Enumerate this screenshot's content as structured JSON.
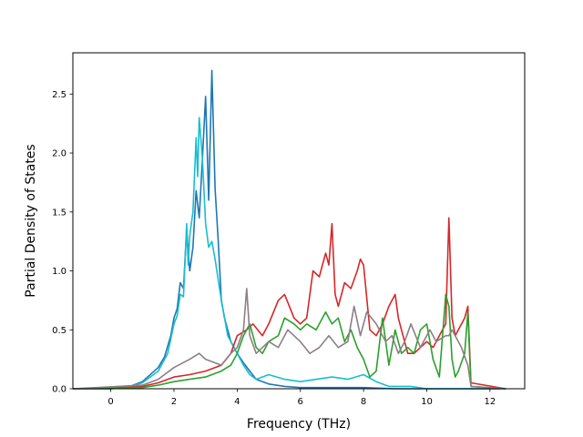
{
  "chart_data": {
    "type": "line",
    "title": "",
    "xlabel": "Frequency (THz)",
    "ylabel": "Partial Density of States",
    "xlim": [
      -1.2,
      13.1
    ],
    "ylim": [
      0,
      2.85
    ],
    "xticks": [
      0,
      2,
      4,
      6,
      8,
      10,
      12
    ],
    "xtick_labels": [
      "0",
      "2",
      "4",
      "6",
      "8",
      "10",
      "12"
    ],
    "yticks": [
      0.0,
      0.5,
      1.0,
      1.5,
      2.0,
      2.5
    ],
    "ytick_labels": [
      "0.0",
      "0.5",
      "1.0",
      "1.5",
      "2.0",
      "2.5"
    ],
    "grid": false,
    "legend": "none",
    "series": [
      {
        "color": "#1f77b4",
        "x": [
          -1.2,
          0.0,
          0.5,
          1.0,
          1.5,
          1.7,
          1.9,
          2.0,
          2.1,
          2.2,
          2.3,
          2.4,
          2.5,
          2.6,
          2.7,
          2.8,
          2.9,
          3.0,
          3.1,
          3.2,
          3.3,
          3.4,
          3.5,
          3.6,
          3.8,
          4.0,
          4.2,
          4.4,
          4.6,
          5.0,
          5.5,
          6.0,
          7.0,
          8.0,
          9.0,
          10.0,
          11.0,
          11.3,
          12.5
        ],
        "y": [
          0,
          0,
          0.01,
          0.06,
          0.18,
          0.27,
          0.45,
          0.6,
          0.68,
          0.9,
          0.85,
          1.35,
          1.0,
          1.2,
          1.68,
          1.45,
          1.95,
          2.48,
          1.6,
          2.7,
          1.7,
          1.25,
          0.75,
          0.6,
          0.4,
          0.3,
          0.22,
          0.15,
          0.08,
          0.04,
          0.02,
          0.01,
          0.01,
          0.01,
          0,
          0,
          0,
          0,
          0
        ]
      },
      {
        "color": "#17becf",
        "x": [
          -1.2,
          0.0,
          0.5,
          1.0,
          1.5,
          1.8,
          2.0,
          2.1,
          2.2,
          2.3,
          2.4,
          2.45,
          2.5,
          2.6,
          2.7,
          2.75,
          2.8,
          2.9,
          3.0,
          3.1,
          3.2,
          3.3,
          3.5,
          3.7,
          4.0,
          4.2,
          4.4,
          4.6,
          5.0,
          5.5,
          6.0,
          7.0,
          7.5,
          8.0,
          8.4,
          8.8,
          9.5,
          10.0,
          11.0,
          11.3,
          12.5
        ],
        "y": [
          0,
          0,
          0.01,
          0.05,
          0.15,
          0.3,
          0.55,
          0.62,
          0.8,
          0.78,
          1.4,
          1.05,
          1.3,
          1.5,
          2.13,
          1.8,
          2.3,
          1.95,
          1.4,
          1.2,
          1.25,
          1.1,
          0.75,
          0.45,
          0.3,
          0.2,
          0.12,
          0.08,
          0.12,
          0.08,
          0.06,
          0.1,
          0.08,
          0.12,
          0.06,
          0.02,
          0.02,
          0,
          0,
          0,
          0
        ]
      },
      {
        "color": "#d62728",
        "x": [
          -1.2,
          1.0,
          1.5,
          2.0,
          2.5,
          3.0,
          3.5,
          3.8,
          4.0,
          4.3,
          4.5,
          4.8,
          5.0,
          5.3,
          5.5,
          5.8,
          6.0,
          6.2,
          6.4,
          6.6,
          6.8,
          6.9,
          7.0,
          7.1,
          7.2,
          7.4,
          7.6,
          7.8,
          7.9,
          8.0,
          8.2,
          8.4,
          8.6,
          8.8,
          9.0,
          9.1,
          9.2,
          9.4,
          9.6,
          9.8,
          10.0,
          10.2,
          10.4,
          10.6,
          10.7,
          10.8,
          10.9,
          11.0,
          11.2,
          11.3,
          11.4,
          12.5
        ],
        "y": [
          0,
          0.02,
          0.05,
          0.1,
          0.12,
          0.15,
          0.2,
          0.3,
          0.45,
          0.5,
          0.55,
          0.45,
          0.55,
          0.75,
          0.8,
          0.6,
          0.55,
          0.6,
          1.0,
          0.95,
          1.15,
          1.05,
          1.4,
          0.8,
          0.7,
          0.9,
          0.85,
          1.0,
          1.1,
          1.05,
          0.5,
          0.45,
          0.55,
          0.7,
          0.8,
          0.6,
          0.5,
          0.3,
          0.3,
          0.35,
          0.4,
          0.35,
          0.45,
          0.55,
          1.45,
          0.6,
          0.45,
          0.5,
          0.6,
          0.7,
          0.05,
          0
        ]
      },
      {
        "color": "#2ca02c",
        "x": [
          -1.2,
          1.0,
          1.5,
          2.0,
          2.5,
          3.0,
          3.5,
          3.8,
          4.0,
          4.2,
          4.4,
          4.6,
          4.8,
          5.0,
          5.3,
          5.5,
          5.8,
          6.0,
          6.2,
          6.5,
          6.7,
          6.8,
          7.0,
          7.2,
          7.4,
          7.6,
          7.8,
          8.0,
          8.2,
          8.4,
          8.6,
          8.8,
          9.0,
          9.2,
          9.4,
          9.6,
          9.8,
          10.0,
          10.2,
          10.4,
          10.6,
          10.7,
          10.8,
          10.9,
          11.0,
          11.2,
          11.3,
          11.4,
          12.5
        ],
        "y": [
          0,
          0.01,
          0.03,
          0.06,
          0.08,
          0.1,
          0.15,
          0.2,
          0.3,
          0.45,
          0.55,
          0.35,
          0.3,
          0.4,
          0.45,
          0.6,
          0.55,
          0.5,
          0.55,
          0.5,
          0.6,
          0.65,
          0.55,
          0.6,
          0.4,
          0.5,
          0.35,
          0.25,
          0.1,
          0.15,
          0.6,
          0.2,
          0.5,
          0.3,
          0.35,
          0.3,
          0.5,
          0.55,
          0.25,
          0.1,
          0.8,
          0.7,
          0.25,
          0.1,
          0.15,
          0.3,
          0.65,
          0.02,
          0
        ]
      },
      {
        "color": "#8c7f86",
        "x": [
          -1.2,
          1.0,
          1.5,
          2.0,
          2.5,
          2.8,
          3.0,
          3.5,
          3.8,
          4.0,
          4.2,
          4.3,
          4.4,
          4.6,
          4.8,
          5.0,
          5.3,
          5.6,
          6.0,
          6.3,
          6.6,
          6.9,
          7.2,
          7.5,
          7.7,
          7.9,
          8.1,
          8.4,
          8.7,
          8.9,
          9.1,
          9.3,
          9.5,
          9.8,
          10.1,
          10.3,
          10.6,
          10.7,
          10.8,
          10.9,
          11.1,
          11.3,
          11.4,
          12.5
        ],
        "y": [
          0,
          0.03,
          0.08,
          0.18,
          0.25,
          0.3,
          0.25,
          0.2,
          0.3,
          0.35,
          0.5,
          0.85,
          0.45,
          0.3,
          0.35,
          0.4,
          0.35,
          0.5,
          0.4,
          0.3,
          0.35,
          0.45,
          0.35,
          0.4,
          0.7,
          0.45,
          0.65,
          0.55,
          0.4,
          0.45,
          0.3,
          0.4,
          0.55,
          0.35,
          0.5,
          0.4,
          0.45,
          0.45,
          0.5,
          0.45,
          0.35,
          0.2,
          0.02,
          0
        ]
      }
    ]
  }
}
